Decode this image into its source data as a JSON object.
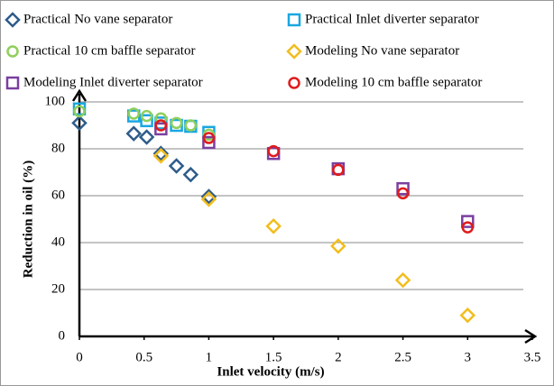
{
  "chart_data": {
    "type": "scatter",
    "x_label": "Inlet velocity (m/s)",
    "y_label": "Reduction in oil (%)",
    "xlim": [
      0,
      3.5
    ],
    "xticks": [
      0,
      0.5,
      1,
      1.5,
      2,
      2.5,
      3,
      3.5
    ],
    "ylim": [
      0,
      100
    ],
    "yticks": [
      0,
      20,
      40,
      60,
      80,
      100
    ],
    "grid": true,
    "legend": "top",
    "series": [
      {
        "name": "Practical No vane separator",
        "color": "#2e5c8a",
        "marker": "diamond",
        "x": [
          0,
          0.42,
          0.52,
          0.63,
          0.75,
          0.86,
          1
        ],
        "values": [
          91,
          86.5,
          85,
          78,
          72.7,
          69,
          59.6
        ]
      },
      {
        "name": "Practical Inlet diverter separator",
        "color": "#1aa7e0",
        "marker": "square",
        "x": [
          0,
          0.42,
          0.52,
          0.63,
          0.75,
          0.86,
          1
        ],
        "values": [
          97,
          94,
          92,
          91,
          90,
          89.6,
          87
        ]
      },
      {
        "name": "Practical 10 cm baffle separator",
        "color": "#8fcf5a",
        "marker": "circle",
        "x": [
          0,
          0.42,
          0.52,
          0.63,
          0.75,
          0.86,
          1
        ],
        "values": [
          96,
          95,
          94,
          93,
          91,
          90,
          86
        ]
      },
      {
        "name": "Modeling No vane separator",
        "color": "#f2bd1d",
        "marker": "diamond",
        "x": [
          0.63,
          1,
          1.5,
          2,
          2.5,
          3
        ],
        "values": [
          77,
          58.5,
          47,
          38.5,
          24,
          9
        ]
      },
      {
        "name": "Modeling Inlet diverter separator",
        "color": "#7b3fa0",
        "marker": "square",
        "x": [
          0.63,
          1,
          1.5,
          2,
          2.5,
          3
        ],
        "values": [
          88.5,
          82.7,
          78,
          71.5,
          63,
          49
        ]
      },
      {
        "name": "Modeling 10 cm baffle separator",
        "color": "#e01b1b",
        "marker": "circle",
        "x": [
          0.63,
          1,
          1.5,
          2,
          2.5,
          3
        ],
        "values": [
          90,
          84.6,
          79,
          71,
          61,
          46.5
        ]
      }
    ]
  }
}
